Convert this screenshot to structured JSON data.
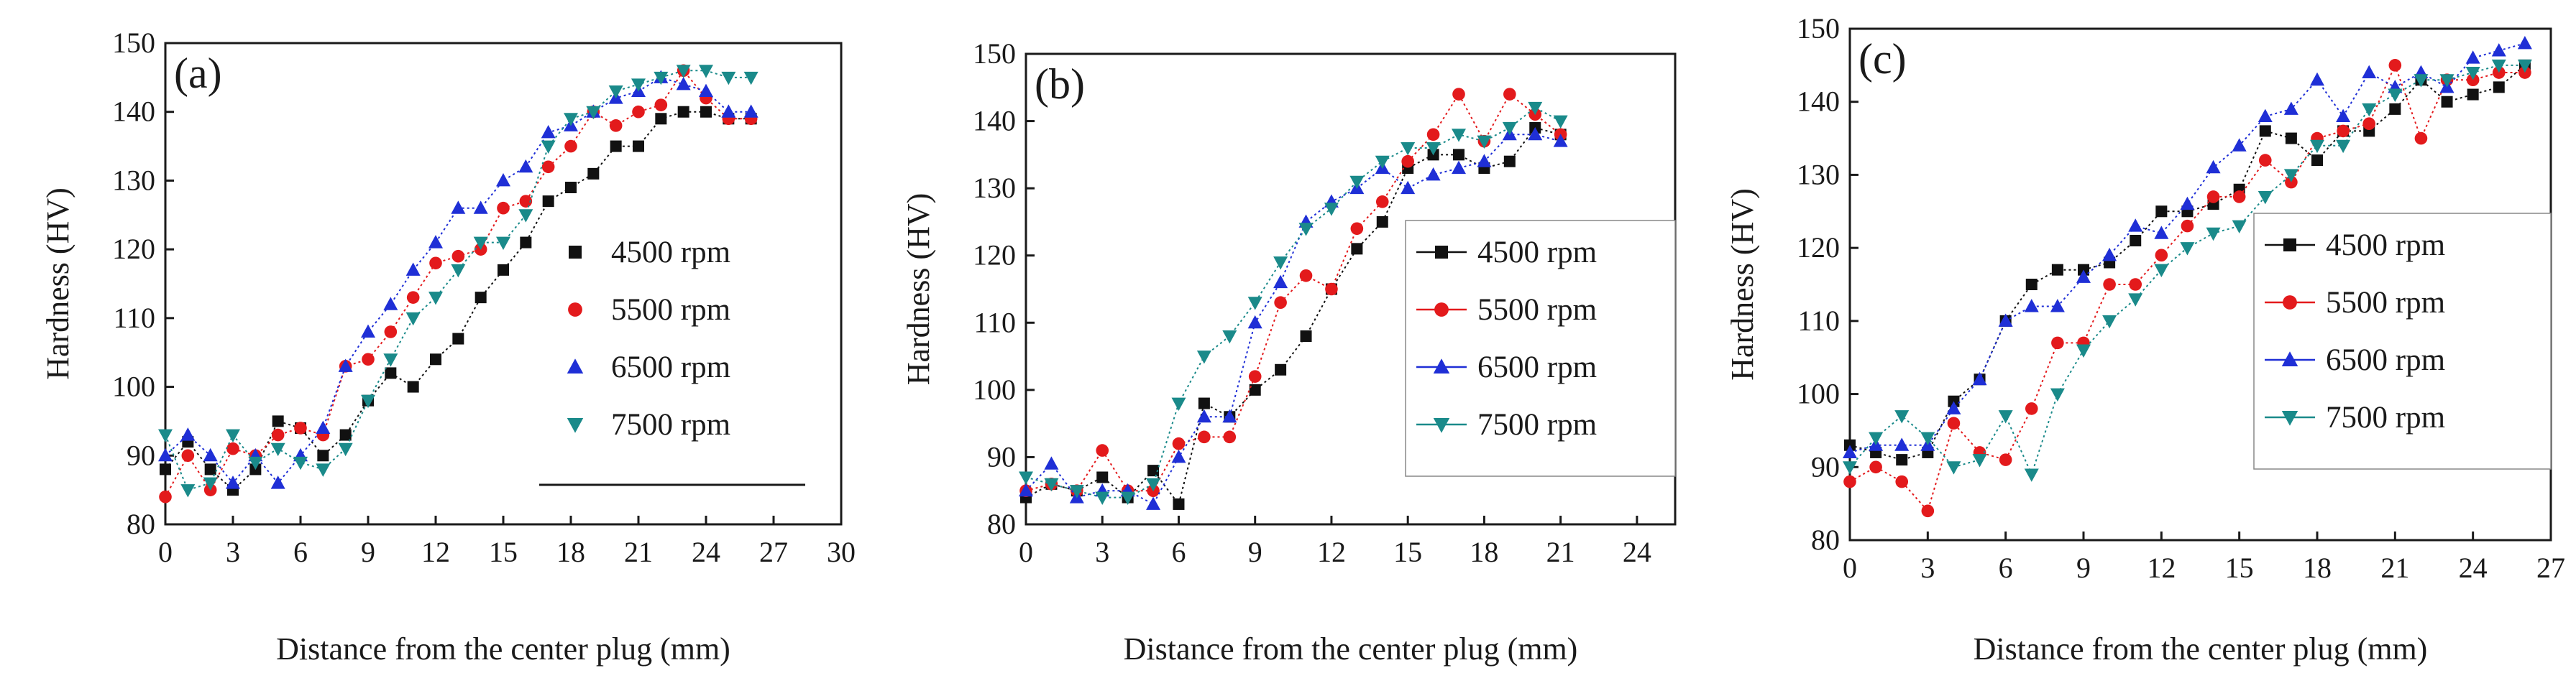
{
  "figure": {
    "colors": {
      "4500 rpm": "#111111",
      "5500 rpm": "#e31a1c",
      "6500 rpm": "#1f2fd6",
      "7500 rpm": "#1a8a8a"
    }
  },
  "chart_data": [
    {
      "type": "line",
      "panel_label": "(a)",
      "title": "",
      "xlabel": "Distance from the center plug (mm)",
      "ylabel": "Hardness (HV)",
      "xlim": [
        0,
        30
      ],
      "ylim": [
        80,
        150
      ],
      "xticks": [
        0,
        3,
        6,
        9,
        12,
        15,
        18,
        21,
        24,
        27,
        30
      ],
      "yticks": [
        80,
        90,
        100,
        110,
        120,
        130,
        140,
        150
      ],
      "legend_position": "right",
      "legend": [
        "4500 rpm",
        "5500 rpm",
        "6500 rpm",
        "7500 rpm"
      ],
      "series": [
        {
          "name": "4500 rpm",
          "marker": "square",
          "x": [
            0,
            1,
            2,
            3,
            4,
            5,
            6,
            7,
            8,
            9,
            10,
            11,
            12,
            13,
            14,
            15,
            16,
            17,
            18,
            19,
            20,
            21,
            22,
            23,
            24,
            25,
            26
          ],
          "y": [
            88,
            92,
            88,
            85,
            88,
            95,
            94,
            90,
            93,
            98,
            102,
            100,
            104,
            107,
            113,
            117,
            121,
            127,
            129,
            131,
            135,
            135,
            139,
            140,
            140,
            139,
            139
          ]
        },
        {
          "name": "5500 rpm",
          "marker": "circle",
          "x": [
            0,
            1,
            2,
            3,
            4,
            5,
            6,
            7,
            8,
            9,
            10,
            11,
            12,
            13,
            14,
            15,
            16,
            17,
            18,
            19,
            20,
            21,
            22,
            23,
            24,
            25,
            26
          ],
          "y": [
            84,
            90,
            85,
            91,
            90,
            93,
            94,
            93,
            103,
            104,
            108,
            113,
            118,
            119,
            120,
            126,
            127,
            132,
            135,
            140,
            138,
            140,
            141,
            146,
            142,
            139,
            139
          ]
        },
        {
          "name": "6500 rpm",
          "marker": "triangle-up",
          "x": [
            0,
            1,
            2,
            3,
            4,
            5,
            6,
            7,
            8,
            9,
            10,
            11,
            12,
            13,
            14,
            15,
            16,
            17,
            18,
            19,
            20,
            21,
            22,
            23,
            24,
            25,
            26
          ],
          "y": [
            90,
            93,
            90,
            86,
            90,
            86,
            90,
            94,
            103,
            108,
            112,
            117,
            121,
            126,
            126,
            130,
            132,
            137,
            138,
            140,
            142,
            143,
            145,
            144,
            143,
            140,
            140
          ]
        },
        {
          "name": "7500 rpm",
          "marker": "triangle-down",
          "x": [
            0,
            1,
            2,
            3,
            4,
            5,
            6,
            7,
            8,
            9,
            10,
            11,
            12,
            13,
            14,
            15,
            16,
            17,
            18,
            19,
            20,
            21,
            22,
            23,
            24,
            25,
            26
          ],
          "y": [
            93,
            85,
            86,
            93,
            89,
            91,
            89,
            88,
            91,
            98,
            104,
            110,
            113,
            117,
            121,
            121,
            125,
            135,
            139,
            140,
            143,
            144,
            145,
            146,
            146,
            145,
            145
          ]
        }
      ]
    },
    {
      "type": "line",
      "panel_label": "(b)",
      "title": "",
      "xlabel": "Distance from the center plug (mm)",
      "ylabel": "Hardness (HV)",
      "xlim": [
        0,
        25.5
      ],
      "ylim": [
        80,
        150
      ],
      "xticks": [
        0,
        3,
        6,
        9,
        12,
        15,
        18,
        21,
        24
      ],
      "yticks": [
        80,
        90,
        100,
        110,
        120,
        130,
        140,
        150
      ],
      "legend_position": "right",
      "legend": [
        "4500 rpm",
        "5500 rpm",
        "6500 rpm",
        "7500 rpm"
      ],
      "series": [
        {
          "name": "4500 rpm",
          "marker": "square",
          "x": [
            0,
            1,
            2,
            3,
            4,
            5,
            6,
            7,
            8,
            9,
            10,
            11,
            12,
            13,
            14,
            15,
            16,
            17,
            18,
            19,
            20,
            21
          ],
          "y": [
            84,
            86,
            85,
            87,
            84,
            88,
            83,
            98,
            96,
            100,
            103,
            108,
            115,
            121,
            125,
            133,
            135,
            135,
            133,
            134,
            139,
            138
          ]
        },
        {
          "name": "5500 rpm",
          "marker": "circle",
          "x": [
            0,
            1,
            2,
            3,
            4,
            5,
            6,
            7,
            8,
            9,
            10,
            11,
            12,
            13,
            14,
            15,
            16,
            17,
            18,
            19,
            20,
            21
          ],
          "y": [
            85,
            86,
            85,
            91,
            85,
            85,
            92,
            93,
            93,
            102,
            113,
            117,
            115,
            124,
            128,
            134,
            138,
            144,
            137,
            144,
            141,
            138
          ]
        },
        {
          "name": "6500 rpm",
          "marker": "triangle-up",
          "x": [
            0,
            1,
            2,
            3,
            4,
            5,
            6,
            7,
            8,
            9,
            10,
            11,
            12,
            13,
            14,
            15,
            16,
            17,
            18,
            19,
            20,
            21
          ],
          "y": [
            85,
            89,
            84,
            85,
            85,
            83,
            90,
            96,
            96,
            110,
            116,
            125,
            128,
            130,
            133,
            130,
            132,
            133,
            134,
            138,
            138,
            137
          ]
        },
        {
          "name": "7500 rpm",
          "marker": "triangle-down",
          "x": [
            0,
            1,
            2,
            3,
            4,
            5,
            6,
            7,
            8,
            9,
            10,
            11,
            12,
            13,
            14,
            15,
            16,
            17,
            18,
            19,
            20,
            21
          ],
          "y": [
            87,
            86,
            85,
            84,
            84,
            86,
            98,
            105,
            108,
            113,
            119,
            124,
            127,
            131,
            134,
            136,
            136,
            138,
            137,
            139,
            142,
            140
          ]
        }
      ]
    },
    {
      "type": "line",
      "panel_label": "(c)",
      "title": "",
      "xlabel": "Distance from the center plug (mm)",
      "ylabel": "Hardness (HV)",
      "xlim": [
        0,
        27
      ],
      "ylim": [
        80,
        150
      ],
      "xticks": [
        0,
        3,
        6,
        9,
        12,
        15,
        18,
        21,
        24,
        27
      ],
      "yticks": [
        80,
        90,
        100,
        110,
        120,
        130,
        140,
        150
      ],
      "legend_position": "right",
      "legend": [
        "4500 rpm",
        "5500 rpm",
        "6500 rpm",
        "7500 rpm"
      ],
      "series": [
        {
          "name": "4500 rpm",
          "marker": "square",
          "x": [
            0,
            1,
            2,
            3,
            4,
            5,
            6,
            7,
            8,
            9,
            10,
            11,
            12,
            13,
            14,
            15,
            16,
            17,
            18,
            19,
            20,
            21,
            22,
            23,
            24,
            25,
            26
          ],
          "y": [
            93,
            92,
            91,
            92,
            99,
            102,
            110,
            115,
            117,
            117,
            118,
            121,
            125,
            125,
            126,
            128,
            136,
            135,
            132,
            136,
            136,
            139,
            143,
            140,
            141,
            142,
            145
          ]
        },
        {
          "name": "5500 rpm",
          "marker": "circle",
          "x": [
            0,
            1,
            2,
            3,
            4,
            5,
            6,
            7,
            8,
            9,
            10,
            11,
            12,
            13,
            14,
            15,
            16,
            17,
            18,
            19,
            20,
            21,
            22,
            23,
            24,
            25,
            26
          ],
          "y": [
            88,
            90,
            88,
            84,
            96,
            92,
            91,
            98,
            107,
            107,
            115,
            115,
            119,
            123,
            127,
            127,
            132,
            129,
            135,
            136,
            137,
            145,
            135,
            143,
            143,
            144,
            144
          ]
        },
        {
          "name": "6500 rpm",
          "marker": "triangle-up",
          "x": [
            0,
            1,
            2,
            3,
            4,
            5,
            6,
            7,
            8,
            9,
            10,
            11,
            12,
            13,
            14,
            15,
            16,
            17,
            18,
            19,
            20,
            21,
            22,
            23,
            24,
            25,
            26
          ],
          "y": [
            92,
            93,
            93,
            93,
            98,
            102,
            110,
            112,
            112,
            116,
            119,
            123,
            122,
            126,
            131,
            134,
            138,
            139,
            143,
            138,
            144,
            142,
            144,
            142,
            146,
            147,
            148
          ]
        },
        {
          "name": "7500 rpm",
          "marker": "triangle-down",
          "x": [
            0,
            1,
            2,
            3,
            4,
            5,
            6,
            7,
            8,
            9,
            10,
            11,
            12,
            13,
            14,
            15,
            16,
            17,
            18,
            19,
            20,
            21,
            22,
            23,
            24,
            25,
            26
          ],
          "y": [
            90,
            94,
            97,
            94,
            90,
            91,
            97,
            89,
            100,
            106,
            110,
            113,
            117,
            120,
            122,
            123,
            127,
            130,
            134,
            134,
            139,
            141,
            143,
            143,
            144,
            145,
            145
          ]
        }
      ]
    }
  ]
}
